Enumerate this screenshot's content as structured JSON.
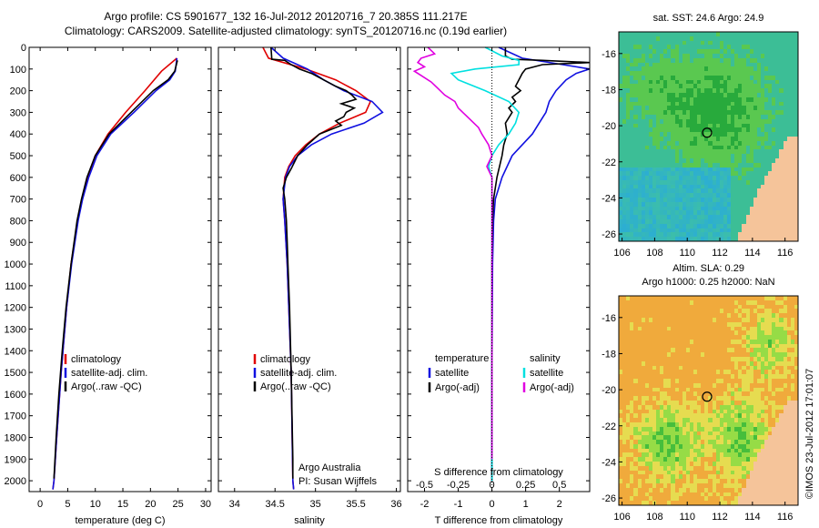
{
  "header": {
    "line1": "Argo profile: CS 5901677_132 16-Jul-2012 20120716_7 20.385S 111.217E",
    "line2": "Climatology: CARS2009. Satellite-adjusted climatology: synTS_20120716.nc (0.19d earlier)"
  },
  "y_ticks": [
    0,
    100,
    200,
    300,
    400,
    500,
    600,
    700,
    800,
    900,
    1000,
    1100,
    1200,
    1300,
    1400,
    1500,
    1600,
    1700,
    1800,
    1900,
    2000
  ],
  "colors": {
    "climatology": "#e00000",
    "satellite": "#1010e0",
    "argo": "#000000",
    "sat_salinity": "#00e0e0",
    "argo_salinity": "#e000e0"
  },
  "chart_data": [
    {
      "type": "line",
      "id": "temperature",
      "xlabel": "temperature (deg C)",
      "xlim": [
        -2,
        31
      ],
      "ylim": [
        2050,
        0
      ],
      "x_ticks": [
        0,
        5,
        10,
        15,
        20,
        25,
        30
      ],
      "legend": [
        "climatology",
        "satellite-adj. clim.",
        "Argo(..raw -QC)"
      ],
      "series": [
        {
          "name": "climatology",
          "y": [
            50,
            110,
            200,
            300,
            400,
            500,
            600,
            700,
            800,
            1000,
            1200,
            1500,
            1800,
            2000,
            2040
          ],
          "x": [
            24.8,
            22.0,
            19.0,
            15.5,
            12.3,
            10.0,
            8.6,
            7.6,
            6.8,
            5.6,
            4.8,
            3.8,
            3.0,
            2.5,
            2.3
          ]
        },
        {
          "name": "satellite-adj. clim.",
          "y": [
            50,
            110,
            150,
            200,
            300,
            400,
            500,
            600,
            700,
            800,
            1000,
            1200,
            1500,
            1800,
            2000,
            2040
          ],
          "x": [
            24.8,
            24.5,
            23.5,
            21.0,
            17.0,
            12.8,
            10.3,
            8.8,
            7.7,
            6.9,
            5.7,
            4.8,
            3.8,
            3.0,
            2.5,
            2.3
          ]
        },
        {
          "name": "Argo(..raw -QC)",
          "y": [
            60,
            110,
            150,
            200,
            300,
            400,
            500,
            600,
            700,
            800,
            1000,
            1200,
            1400,
            1600,
            1800,
            1990
          ],
          "x": [
            24.9,
            24.4,
            23.2,
            20.5,
            16.5,
            12.5,
            10.0,
            8.5,
            7.5,
            6.7,
            5.6,
            4.7,
            4.0,
            3.4,
            2.9,
            2.5
          ]
        }
      ]
    },
    {
      "type": "line",
      "id": "salinity",
      "xlabel": "salinity",
      "xlim": [
        33.8,
        36.05
      ],
      "ylim": [
        2050,
        0
      ],
      "x_ticks": [
        34,
        34.5,
        35,
        35.5,
        36
      ],
      "legend": [
        "climatology",
        "satellite-adj. clim.",
        "Argo(..raw -QC)"
      ],
      "annotation": [
        "Argo Australia",
        "PI: Susan Wijffels"
      ],
      "series": [
        {
          "name": "climatology",
          "y": [
            0,
            50,
            100,
            150,
            200,
            250,
            300,
            350,
            400,
            450,
            500,
            550,
            600,
            700,
            800,
            1000,
            1500,
            2000,
            2040
          ],
          "x": [
            34.35,
            34.42,
            34.88,
            35.25,
            35.5,
            35.68,
            35.62,
            35.3,
            35.05,
            34.88,
            34.75,
            34.67,
            34.62,
            34.6,
            34.62,
            34.65,
            34.7,
            34.72,
            34.73
          ]
        },
        {
          "name": "satellite-adj. clim.",
          "y": [
            0,
            50,
            100,
            150,
            200,
            250,
            300,
            350,
            400,
            450,
            500,
            550,
            600,
            700,
            800,
            1000,
            1500,
            2000,
            2040
          ],
          "x": [
            34.45,
            34.6,
            34.9,
            35.1,
            35.35,
            35.7,
            35.83,
            35.6,
            35.2,
            34.95,
            34.78,
            34.68,
            34.63,
            34.6,
            34.62,
            34.65,
            34.7,
            34.72,
            34.73
          ]
        },
        {
          "name": "Argo(..raw -QC)",
          "y": [
            0,
            55,
            60,
            80,
            100,
            120,
            150,
            180,
            200,
            220,
            240,
            260,
            280,
            300,
            320,
            340,
            360,
            400,
            450,
            500,
            560,
            600,
            650,
            700,
            800,
            900,
            1000,
            1200,
            1500,
            1700,
            1900,
            1990
          ],
          "x": [
            34.45,
            34.46,
            34.62,
            34.7,
            34.8,
            34.95,
            35.1,
            35.25,
            35.38,
            35.45,
            35.5,
            35.32,
            35.48,
            35.38,
            35.35,
            35.25,
            35.32,
            35.05,
            34.9,
            34.78,
            34.7,
            34.64,
            34.6,
            34.62,
            34.64,
            34.65,
            34.66,
            34.68,
            34.7,
            34.71,
            34.72,
            34.72
          ]
        }
      ]
    },
    {
      "type": "line",
      "id": "difference",
      "xlabel": "T difference from climatology",
      "xlim": [
        -2.5,
        2.9
      ],
      "ylim": [
        2050,
        0
      ],
      "x_ticks": [
        -2,
        -1,
        0,
        1,
        2
      ],
      "secondary_label": "S difference from climatology",
      "secondary_ticks": [
        "-0.5",
        "-0.25",
        "0",
        "0.25",
        "0.5"
      ],
      "secondary_tick_positions": [
        -2,
        -1,
        0,
        1,
        2
      ],
      "legend_headers": [
        "temperature",
        "salinity"
      ],
      "legend": [
        "satellite",
        "Argo(-adj)",
        "satellite",
        "Argo(-adj)"
      ],
      "series": [
        {
          "name": "satellite",
          "y": [
            0,
            50,
            80,
            100,
            120,
            150,
            200,
            250,
            300,
            350,
            400,
            450,
            500,
            600,
            700,
            800,
            1000,
            1500,
            2000
          ],
          "x": [
            0.2,
            0.9,
            2.1,
            2.9,
            2.5,
            2.2,
            1.9,
            1.7,
            1.6,
            1.4,
            1.2,
            0.9,
            0.6,
            0.3,
            0.1,
            0.05,
            0.02,
            0.0,
            0.0
          ]
        },
        {
          "name": "Argo(-adj)",
          "y": [
            0,
            40,
            55,
            60,
            70,
            80,
            100,
            120,
            150,
            180,
            200,
            230,
            250,
            280,
            300,
            350,
            400,
            450,
            500,
            600,
            700,
            800,
            1000,
            1500,
            2000
          ],
          "x": [
            0.4,
            0.4,
            0.6,
            1.5,
            2.9,
            1.5,
            1.0,
            0.9,
            0.8,
            0.7,
            0.85,
            0.6,
            0.7,
            0.5,
            0.6,
            0.4,
            0.45,
            0.35,
            0.3,
            0.15,
            0.05,
            0.02,
            0.0,
            0.0,
            0.0
          ]
        },
        {
          "name": "satellite",
          "y": [
            0,
            40,
            60,
            80,
            100,
            120,
            150,
            200,
            250,
            300,
            350,
            400,
            450,
            500,
            550,
            600,
            700,
            800,
            1000,
            1500,
            2000
          ],
          "x": [
            -0.2,
            0.3,
            0.8,
            0.8,
            -0.5,
            -1.2,
            -1.0,
            -0.2,
            0.5,
            0.8,
            0.7,
            0.5,
            0.2,
            0.0,
            -0.1,
            0.0,
            0.0,
            0.0,
            0.0,
            0.0,
            0.0
          ]
        },
        {
          "name": "Argo(-adj)",
          "y": [
            0,
            30,
            50,
            70,
            90,
            110,
            130,
            160,
            190,
            220,
            250,
            280,
            310,
            340,
            370,
            400,
            450,
            500,
            550,
            600,
            700,
            1000,
            1500,
            1800,
            1900
          ],
          "x": [
            -1.9,
            -1.7,
            -2.1,
            -2.2,
            -2.0,
            -2.3,
            -2.1,
            -1.8,
            -1.6,
            -1.4,
            -1.1,
            -1.0,
            -0.8,
            -0.6,
            -0.4,
            -0.3,
            -0.1,
            0.0,
            -0.15,
            0.0,
            0.0,
            0.0,
            0.0,
            0.0,
            0.0
          ]
        }
      ]
    },
    {
      "type": "heatmap",
      "id": "sst_map",
      "title": "sat. SST: 24.6 Argo: 24.9",
      "x_ticks": [
        106,
        108,
        110,
        112,
        114,
        116
      ],
      "y_ticks": [
        -16,
        -18,
        -20,
        -22,
        -24,
        -26
      ],
      "xlim": [
        105.8,
        116.8
      ],
      "ylim": [
        -26.4,
        -14.8
      ],
      "marker": {
        "lon": 111.217,
        "lat": -20.385
      }
    },
    {
      "type": "heatmap",
      "id": "sla_map",
      "title": [
        "Altim. SLA: 0.29",
        "Argo h1000: 0.25 h2000: NaN"
      ],
      "x_ticks": [
        106,
        108,
        110,
        112,
        114,
        116
      ],
      "y_ticks": [
        -16,
        -18,
        -20,
        -22,
        -24,
        -26
      ],
      "xlim": [
        105.8,
        116.8
      ],
      "ylim": [
        -26.4,
        -14.8
      ],
      "marker": {
        "lon": 111.217,
        "lat": -20.385
      }
    }
  ],
  "side_caption": "©IMOS 23-Jul-2012 17:01:07"
}
